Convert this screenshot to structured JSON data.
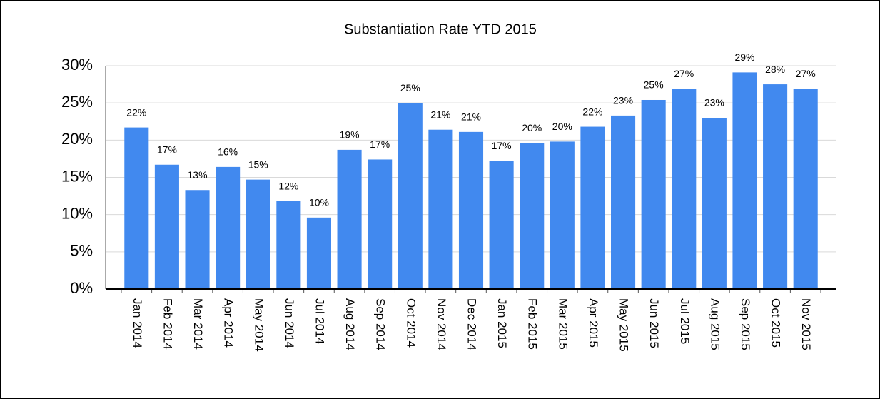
{
  "chart_data": {
    "type": "bar",
    "title": "Substantiation Rate YTD  2015",
    "categories": [
      "Jan 2014",
      "Feb 2014",
      "Mar 2014",
      "Apr 2014",
      "May 2014",
      "Jun 2014",
      "Jul 2014",
      "Aug 2014",
      "Sep 2014",
      "Oct 2014",
      "Nov 2014",
      "Dec 2014",
      "Jan 2015",
      "Feb 2015",
      "Mar 2015",
      "Apr 2015",
      "May 2015",
      "Jun 2015",
      "Jul 2015",
      "Aug 2015",
      "Sep 2015",
      "Oct 2015",
      "Nov 2015"
    ],
    "values": [
      21.7,
      16.7,
      13.3,
      16.4,
      14.7,
      11.8,
      9.6,
      18.7,
      17.4,
      25.0,
      21.4,
      21.1,
      17.2,
      19.6,
      19.8,
      21.8,
      23.3,
      25.4,
      26.9,
      23.0,
      29.1,
      27.5,
      26.9
    ],
    "value_labels": [
      "22%",
      "17%",
      "13%",
      "16%",
      "15%",
      "12%",
      "10%",
      "19%",
      "17%",
      "25%",
      "21%",
      "21%",
      "17%",
      "20%",
      "20%",
      "22%",
      "23%",
      "25%",
      "27%",
      "23%",
      "29%",
      "28%",
      "27%"
    ],
    "color": "#4189ef",
    "ylim": [
      0,
      30
    ],
    "yticks": [
      {
        "value": 0,
        "label": "0%"
      },
      {
        "value": 5,
        "label": "5%"
      },
      {
        "value": 10,
        "label": "10%"
      },
      {
        "value": 15,
        "label": "15%"
      },
      {
        "value": 20,
        "label": "20%"
      },
      {
        "value": 25,
        "label": "25%"
      },
      {
        "value": 30,
        "label": "30%"
      }
    ],
    "grid": true
  }
}
